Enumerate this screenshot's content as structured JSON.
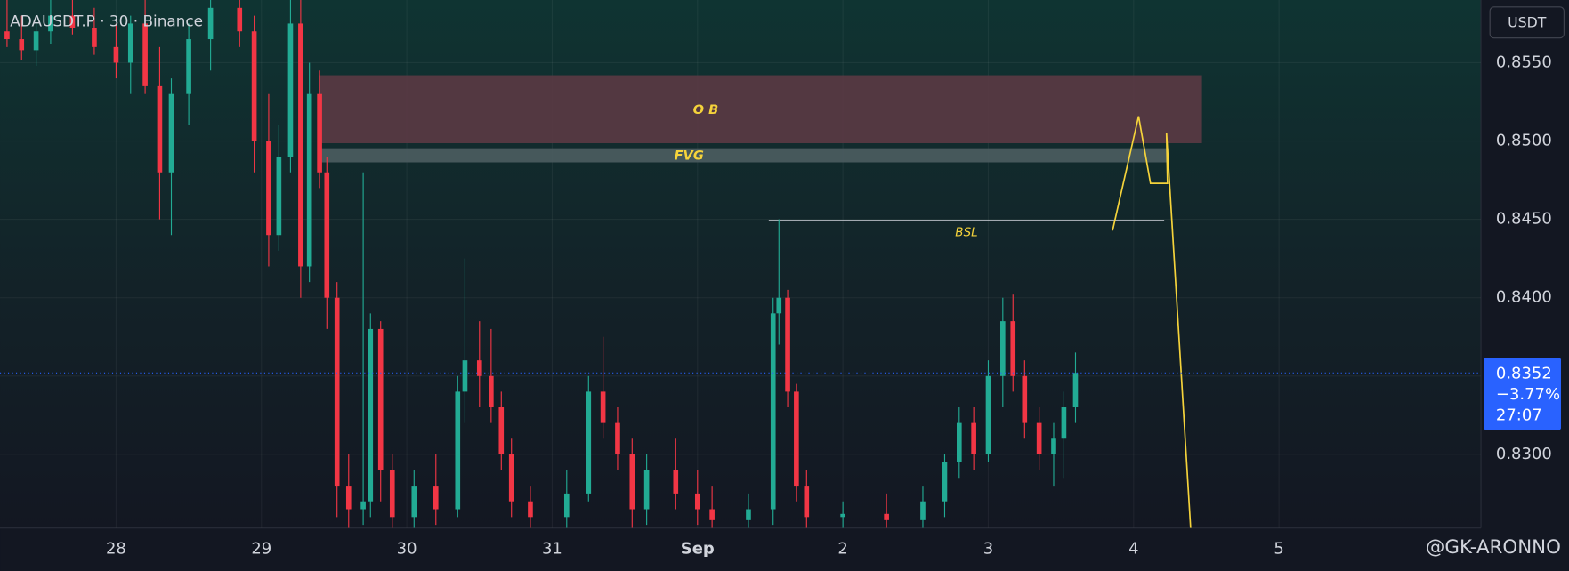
{
  "chart_data": {
    "type": "candlestick",
    "title": "ADAUSDT.P · 30 · Binance",
    "currency": "USDT",
    "watermark": "@GK-ARONNO",
    "up_color": "#22ab94",
    "down_color": "#f23645",
    "xlim": [
      27.2016,
      37.389
    ],
    "xticks": [
      28,
      29,
      30,
      31,
      {
        "value": 32,
        "label": "Sep"
      },
      {
        "value": 33,
        "label": "2"
      },
      {
        "value": 34,
        "label": "3"
      },
      {
        "value": 35,
        "label": "4"
      },
      {
        "value": 36,
        "label": "5"
      }
    ],
    "ylim": [
      0.8253,
      0.859
    ],
    "yticks": [
      {
        "value": 0.83,
        "label": "0.8300"
      },
      {
        "value": 0.835,
        "label": "0.8350"
      },
      {
        "value": 0.84,
        "label": "0.8400"
      },
      {
        "value": 0.845,
        "label": "0.8450"
      },
      {
        "value": 0.85,
        "label": "0.8500"
      },
      {
        "value": 0.855,
        "label": "0.8550"
      }
    ],
    "grid": true,
    "x": [
      27.25,
      27.35,
      27.45,
      27.55,
      27.7,
      27.85,
      28.0,
      28.1,
      28.2,
      28.3,
      28.38,
      28.5,
      28.65,
      28.85,
      28.95,
      29.05,
      29.12,
      29.2,
      29.27,
      29.33,
      29.4,
      29.45,
      29.52,
      29.6,
      29.7,
      29.75,
      29.82,
      29.9,
      30.05,
      30.2,
      30.35,
      30.4,
      30.5,
      30.58,
      30.65,
      30.72,
      30.85,
      31.1,
      31.25,
      31.35,
      31.45,
      31.55,
      31.65,
      31.85,
      32.0,
      32.1,
      32.35,
      32.52,
      32.56,
      32.62,
      32.68,
      32.75,
      33.0,
      33.3,
      33.55,
      33.7,
      33.8,
      33.9,
      34.0,
      34.1,
      34.17,
      34.25,
      34.35,
      34.45,
      34.52,
      34.6
    ],
    "open": [
      0.857,
      0.8565,
      0.8558,
      0.857,
      0.858,
      0.8572,
      0.856,
      0.855,
      0.8575,
      0.8535,
      0.848,
      0.853,
      0.8565,
      0.8585,
      0.857,
      0.85,
      0.844,
      0.849,
      0.8575,
      0.842,
      0.853,
      0.848,
      0.84,
      0.828,
      0.8265,
      0.827,
      0.838,
      0.829,
      0.826,
      0.828,
      0.8265,
      0.834,
      0.836,
      0.835,
      0.833,
      0.83,
      0.827,
      0.826,
      0.8275,
      0.834,
      0.832,
      0.83,
      0.8265,
      0.829,
      0.8275,
      0.8265,
      0.8258,
      0.8265,
      0.839,
      0.84,
      0.834,
      0.828,
      0.826,
      0.8262,
      0.8258,
      0.827,
      0.8295,
      0.832,
      0.83,
      0.835,
      0.8385,
      0.835,
      0.832,
      0.83,
      0.831,
      0.833
    ],
    "high": [
      0.859,
      0.858,
      0.8575,
      0.859,
      0.859,
      0.8585,
      0.8575,
      0.858,
      0.859,
      0.856,
      0.854,
      0.8575,
      0.859,
      0.859,
      0.858,
      0.853,
      0.851,
      0.859,
      0.859,
      0.855,
      0.8545,
      0.849,
      0.841,
      0.83,
      0.848,
      0.839,
      0.8385,
      0.83,
      0.829,
      0.83,
      0.835,
      0.8425,
      0.8385,
      0.838,
      0.834,
      0.831,
      0.828,
      0.829,
      0.835,
      0.8375,
      0.833,
      0.831,
      0.83,
      0.831,
      0.829,
      0.828,
      0.8275,
      0.84,
      0.845,
      0.8405,
      0.8345,
      0.829,
      0.827,
      0.8275,
      0.828,
      0.83,
      0.833,
      0.833,
      0.836,
      0.84,
      0.8402,
      0.836,
      0.833,
      0.832,
      0.834,
      0.8365
    ],
    "low": [
      0.856,
      0.8552,
      0.8548,
      0.8562,
      0.8568,
      0.8555,
      0.854,
      0.853,
      0.853,
      0.845,
      0.844,
      0.851,
      0.8545,
      0.856,
      0.848,
      0.842,
      0.843,
      0.848,
      0.84,
      0.841,
      0.847,
      0.838,
      0.826,
      0.8253,
      0.8255,
      0.826,
      0.827,
      0.8253,
      0.8253,
      0.8255,
      0.826,
      0.832,
      0.833,
      0.832,
      0.829,
      0.826,
      0.8253,
      0.8253,
      0.827,
      0.831,
      0.829,
      0.8253,
      0.8255,
      0.8265,
      0.8255,
      0.8253,
      0.8253,
      0.8255,
      0.837,
      0.833,
      0.827,
      0.8253,
      0.8253,
      0.8253,
      0.8253,
      0.826,
      0.8285,
      0.829,
      0.8295,
      0.833,
      0.834,
      0.831,
      0.829,
      0.828,
      0.8285,
      0.832
    ],
    "close": [
      0.8565,
      0.8558,
      0.857,
      0.858,
      0.8572,
      0.856,
      0.855,
      0.8575,
      0.8535,
      0.848,
      0.853,
      0.8565,
      0.8585,
      0.857,
      0.85,
      0.844,
      0.849,
      0.8575,
      0.842,
      0.853,
      0.848,
      0.84,
      0.828,
      0.8265,
      0.827,
      0.838,
      0.829,
      0.826,
      0.828,
      0.8265,
      0.834,
      0.836,
      0.835,
      0.833,
      0.83,
      0.827,
      0.826,
      0.8275,
      0.834,
      0.832,
      0.83,
      0.8265,
      0.829,
      0.8275,
      0.8265,
      0.8258,
      0.8265,
      0.839,
      0.84,
      0.834,
      0.828,
      0.826,
      0.8262,
      0.8258,
      0.827,
      0.8295,
      0.832,
      0.83,
      0.835,
      0.8385,
      0.835,
      0.832,
      0.83,
      0.831,
      0.833,
      0.8352
    ],
    "last_price": 0.8352,
    "last_change": "−3.77%",
    "countdown": "27:07",
    "price_line_color": "#2962ff",
    "annotations": [
      {
        "label": "O B",
        "xlim": [
          29.4,
          35.47
        ],
        "ylim": [
          0.84986,
          0.8542
        ],
        "color": "#5b3a44"
      },
      {
        "label": "FVG",
        "xlim": [
          29.4,
          35.24
        ],
        "ylim": [
          0.84864,
          0.84954
        ],
        "color": "#4c5d60"
      }
    ],
    "level": {
      "label": "BSL",
      "xlim": [
        32.49,
        35.21
      ],
      "value": 0.84493,
      "color": "#d1d4dc"
    },
    "projection": {
      "color": "#f5d33b",
      "x": [
        34.855,
        35.034,
        35.116,
        35.233,
        35.226,
        35.392
      ],
      "y": [
        0.84429,
        0.85158,
        0.8473,
        0.8473,
        0.8505,
        0.8253
      ]
    }
  }
}
